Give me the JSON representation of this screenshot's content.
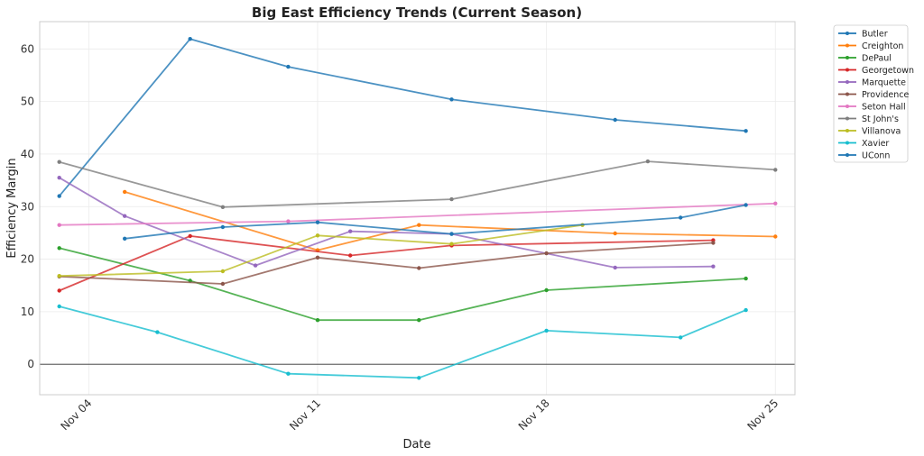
{
  "chart_data": {
    "type": "line",
    "title": "Big East Efficiency Trends (Current Season)",
    "xlabel": "Date",
    "ylabel": "Efficiency Margin",
    "ylim": [
      -5.8,
      65.2
    ],
    "yticks": [
      0,
      10,
      20,
      30,
      40,
      50,
      60
    ],
    "xlim": [
      -1.5,
      21.6
    ],
    "xticks": [
      {
        "label": "Nov 04",
        "x": 0
      },
      {
        "label": "Nov 11",
        "x": 7
      },
      {
        "label": "Nov 18",
        "x": 14
      },
      {
        "label": "Nov 25",
        "x": 21
      }
    ],
    "grid": true,
    "legend_position": "outside-top-right",
    "series": [
      {
        "name": "Butler",
        "color": "#1f77b4",
        "points": [
          [
            -0.9,
            32.0
          ],
          [
            3.1,
            61.9
          ],
          [
            6.1,
            56.6
          ],
          [
            11.1,
            50.4
          ],
          [
            16.1,
            46.5
          ],
          [
            20.1,
            44.4
          ]
        ]
      },
      {
        "name": "Creighton",
        "color": "#ff7f0e",
        "points": [
          [
            1.1,
            32.8
          ],
          [
            7.0,
            21.7
          ],
          [
            10.1,
            26.5
          ],
          [
            16.1,
            24.9
          ],
          [
            21.0,
            24.3
          ]
        ]
      },
      {
        "name": "DePaul",
        "color": "#2ca02c",
        "points": [
          [
            -0.9,
            22.1
          ],
          [
            3.1,
            15.9
          ],
          [
            7.0,
            8.4
          ],
          [
            10.1,
            8.4
          ],
          [
            14.0,
            14.1
          ],
          [
            20.1,
            16.3
          ]
        ]
      },
      {
        "name": "Georgetown",
        "color": "#d62728",
        "points": [
          [
            -0.9,
            14.0
          ],
          [
            3.1,
            24.4
          ],
          [
            8.0,
            20.7
          ],
          [
            11.1,
            22.6
          ],
          [
            19.1,
            23.6
          ]
        ]
      },
      {
        "name": "Marquette",
        "color": "#9467bd",
        "points": [
          [
            -0.9,
            35.5
          ],
          [
            1.1,
            28.2
          ],
          [
            5.1,
            18.8
          ],
          [
            8.0,
            25.3
          ],
          [
            11.1,
            24.8
          ],
          [
            16.1,
            18.4
          ],
          [
            19.1,
            18.6
          ]
        ]
      },
      {
        "name": "Providence",
        "color": "#8c564b",
        "points": [
          [
            -0.9,
            16.7
          ],
          [
            4.1,
            15.3
          ],
          [
            7.0,
            20.3
          ],
          [
            10.1,
            18.3
          ],
          [
            14.0,
            21.1
          ],
          [
            19.1,
            23.1
          ]
        ]
      },
      {
        "name": "Seton Hall",
        "color": "#e377c2",
        "points": [
          [
            -0.9,
            26.5
          ],
          [
            6.1,
            27.2
          ],
          [
            21.0,
            30.6
          ]
        ]
      },
      {
        "name": "St John's",
        "color": "#7f7f7f",
        "points": [
          [
            -0.9,
            38.5
          ],
          [
            4.1,
            29.9
          ],
          [
            11.1,
            31.4
          ],
          [
            17.1,
            38.6
          ],
          [
            21.0,
            37.0
          ]
        ]
      },
      {
        "name": "Villanova",
        "color": "#bcbd22",
        "points": [
          [
            -0.9,
            16.8
          ],
          [
            4.1,
            17.7
          ],
          [
            7.0,
            24.5
          ],
          [
            11.1,
            22.9
          ],
          [
            15.1,
            26.5
          ]
        ]
      },
      {
        "name": "Xavier",
        "color": "#17becf",
        "points": [
          [
            -0.9,
            11.0
          ],
          [
            2.1,
            6.1
          ],
          [
            6.1,
            -1.8
          ],
          [
            10.1,
            -2.6
          ],
          [
            14.0,
            6.4
          ],
          [
            18.1,
            5.1
          ],
          [
            20.1,
            10.3
          ]
        ]
      },
      {
        "name": "UConn",
        "color": "#1f77b4",
        "points": [
          [
            1.1,
            23.9
          ],
          [
            4.1,
            26.1
          ],
          [
            7.0,
            27.0
          ],
          [
            11.1,
            24.8
          ],
          [
            18.1,
            27.9
          ],
          [
            20.1,
            30.3
          ]
        ]
      }
    ]
  }
}
